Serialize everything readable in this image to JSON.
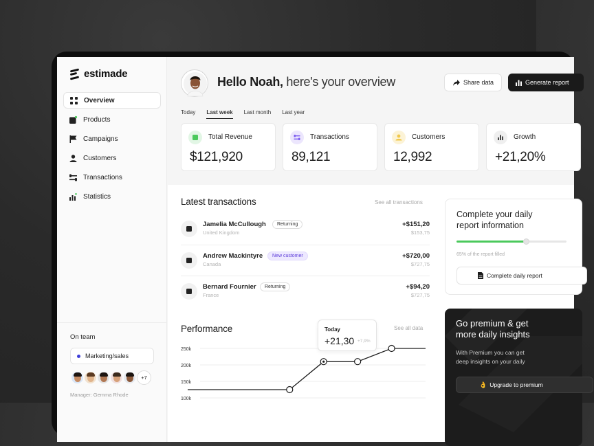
{
  "app": {
    "name": "estimade"
  },
  "sidebar": {
    "items": [
      {
        "label": "Overview",
        "icon": "grid-icon",
        "active": true
      },
      {
        "label": "Products",
        "icon": "box-icon"
      },
      {
        "label": "Campaigns",
        "icon": "flag-icon"
      },
      {
        "label": "Customers",
        "icon": "user-icon"
      },
      {
        "label": "Transactions",
        "icon": "arrows-icon"
      },
      {
        "label": "Statistics",
        "icon": "bar-chart-icon"
      }
    ],
    "team": {
      "label": "On team",
      "group": "Marketing/sales",
      "more": "+7",
      "manager": "Manager: Gemma Rhode"
    }
  },
  "header": {
    "greeting_name": "Hello Noah,",
    "greeting_rest": " here's your overview",
    "share_label": "Share data",
    "generate_label": "Generate report"
  },
  "periods": [
    {
      "label": "Today"
    },
    {
      "label": "Last week",
      "active": true
    },
    {
      "label": "Last month"
    },
    {
      "label": "Last year"
    }
  ],
  "stats": [
    {
      "label": "Total Revenue",
      "value": "$121,920",
      "icon": "wallet-icon",
      "color": "#4bc95c"
    },
    {
      "label": "Transactions",
      "value": "89,121",
      "icon": "arrows-icon",
      "color": "#7b5cf0"
    },
    {
      "label": "Customers",
      "value": "12,992",
      "icon": "user-icon",
      "color": "#f1c84b"
    },
    {
      "label": "Growth",
      "value": "+21,20%",
      "icon": "bar-chart-icon",
      "color": "#333333"
    }
  ],
  "transactions": {
    "title": "Latest transactions",
    "link": "See all transactions",
    "rows": [
      {
        "name": "Jamelia McCullough",
        "country": "United Kingdom",
        "tag": "Returning",
        "tag_type": "ret",
        "amount": "+$151,20",
        "sub": "$153,75"
      },
      {
        "name": "Andrew Mackintyre",
        "country": "Canada",
        "tag": "New customer",
        "tag_type": "new",
        "amount": "+$720,00",
        "sub": "$727,75"
      },
      {
        "name": "Bernard Fournier",
        "country": "France",
        "tag": "Returning",
        "tag_type": "ret",
        "amount": "+$94,20",
        "sub": "$727,75"
      }
    ]
  },
  "performance": {
    "title": "Performance",
    "link": "See all data",
    "tooltip": {
      "label": "Today",
      "value": "+21,30",
      "change": "+7,9%"
    }
  },
  "chart_data": {
    "type": "line",
    "x": [
      0,
      1,
      2,
      3,
      4,
      5,
      6,
      7
    ],
    "values": [
      125,
      125,
      125,
      125,
      210,
      210,
      250,
      250
    ],
    "y_ticks": [
      "250k",
      "200k",
      "150k",
      "100k"
    ],
    "ylim": [
      100,
      250
    ],
    "grid": true
  },
  "daily_card": {
    "title_1": "Complete your daily",
    "title_2": "report information",
    "progress": 0.65,
    "note": "65% of the report filled",
    "button": "Complete daily report"
  },
  "premium_card": {
    "title_1": "Go premium & get",
    "title_2": "more daily insights",
    "desc_1": "With Premium you can get",
    "desc_2": "deep insights on your daily",
    "button": "Upgrade to premium"
  }
}
